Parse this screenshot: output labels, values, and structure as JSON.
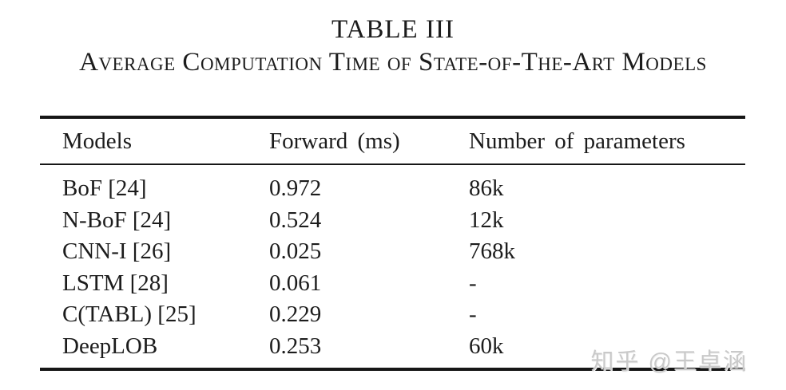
{
  "caption": {
    "title": "TABLE III",
    "subtitle": "Average Computation Time of State-of-The-Art Models"
  },
  "table": {
    "columns": [
      "Models",
      "Forward (ms)",
      "Number of parameters"
    ],
    "rows": [
      {
        "model": "BoF [24]",
        "forward": "0.972",
        "params": "86k"
      },
      {
        "model": "N-BoF [24]",
        "forward": "0.524",
        "params": "12k"
      },
      {
        "model": "CNN-I [26]",
        "forward": "0.025",
        "params": "768k"
      },
      {
        "model": "LSTM [28]",
        "forward": "0.061",
        "params": "-"
      },
      {
        "model": "C(TABL) [25]",
        "forward": "0.229",
        "params": "-"
      },
      {
        "model": "DeepLOB",
        "forward": "0.253",
        "params": "60k"
      }
    ]
  },
  "watermark": {
    "text": "知乎 @王卓涵"
  },
  "colors": {
    "background": "#ffffff",
    "text": "#1c1c1c",
    "rule": "#161616",
    "watermark": "#c9c9c9"
  }
}
